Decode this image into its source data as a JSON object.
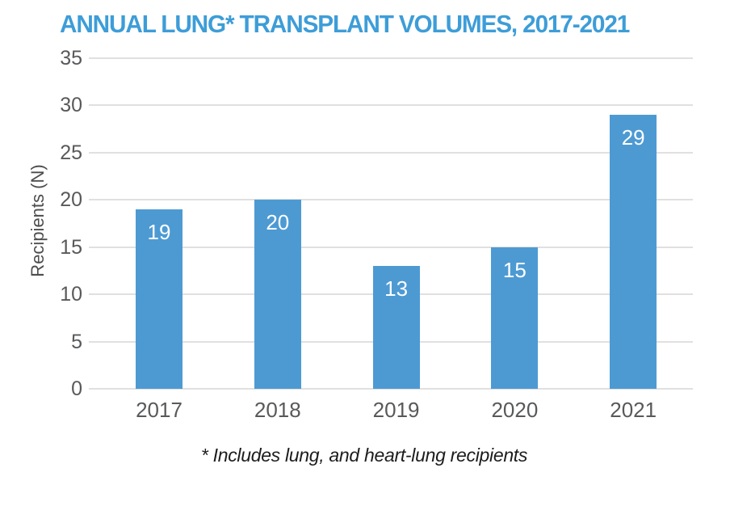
{
  "chart_data": {
    "type": "bar",
    "title": "ANNUAL LUNG* TRANSPLANT VOLUMES, 2017-2021",
    "categories": [
      "2017",
      "2018",
      "2019",
      "2020",
      "2021"
    ],
    "values": [
      19,
      20,
      13,
      15,
      29
    ],
    "bar_labels": [
      "19",
      "20",
      "13",
      "15",
      "29"
    ],
    "xlabel": "",
    "ylabel": "Recipients (N)",
    "ylim": [
      0,
      35
    ],
    "yticks": [
      0,
      5,
      10,
      15,
      20,
      25,
      30,
      35
    ],
    "grid": true,
    "legend": false,
    "footnote": "* Includes lung, and heart-lung recipients"
  },
  "colors": {
    "title_text": "#3D9DD8",
    "bar_fill": "#4D9AD3",
    "bar_label_text": "#FFFFFF",
    "gridline": "#E0E0E0",
    "axis_text": "#58595B",
    "ylabel_text": "#4D4D4F",
    "footnote_text": "#1C1C1E",
    "background": "#FFFFFF"
  }
}
